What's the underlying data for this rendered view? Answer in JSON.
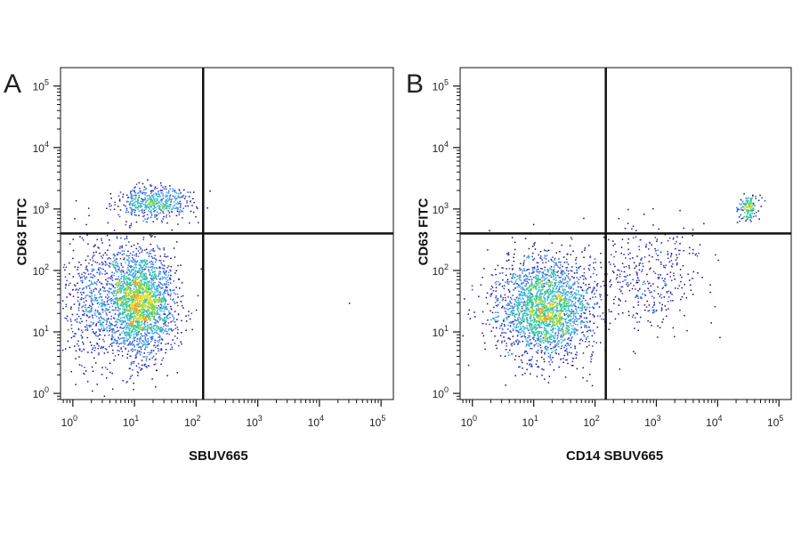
{
  "chart_data": [
    {
      "type": "scatter",
      "panel_label": "A",
      "xlabel": "SBUV665",
      "ylabel": "CD63 FITC",
      "xscale": "log",
      "yscale": "log",
      "xlim_log10": [
        -0.2,
        5.2
      ],
      "ylim_log10": [
        -0.1,
        5.3
      ],
      "x_ticks": [
        {
          "base": "10",
          "exp": "0",
          "log10": 0
        },
        {
          "base": "10",
          "exp": "1",
          "log10": 1
        },
        {
          "base": "10",
          "exp": "2",
          "log10": 2
        },
        {
          "base": "10",
          "exp": "3",
          "log10": 3
        },
        {
          "base": "10",
          "exp": "4",
          "log10": 4
        },
        {
          "base": "10",
          "exp": "5",
          "log10": 5
        }
      ],
      "y_ticks": [
        {
          "base": "10",
          "exp": "0",
          "log10": 0
        },
        {
          "base": "10",
          "exp": "1",
          "log10": 1
        },
        {
          "base": "10",
          "exp": "2",
          "log10": 2
        },
        {
          "base": "10",
          "exp": "3",
          "log10": 3
        },
        {
          "base": "10",
          "exp": "4",
          "log10": 4
        },
        {
          "base": "10",
          "exp": "5",
          "log10": 5
        }
      ],
      "quadrant_gate": {
        "x": 130,
        "y": 400
      },
      "populations": [
        {
          "x_center": 12,
          "y_center": 30,
          "x_spread_log10": 0.28,
          "y_spread_log10": 0.45,
          "events": 2400
        },
        {
          "x_center": 20,
          "y_center": 1300,
          "x_spread_log10": 0.3,
          "y_spread_log10": 0.14,
          "events": 520
        },
        {
          "x_center": 2,
          "y_center": 30,
          "x_spread_log10": 0.25,
          "y_spread_log10": 0.5,
          "events": 500
        }
      ],
      "outliers": [
        {
          "x": 30000,
          "y": 30
        }
      ]
    },
    {
      "type": "scatter",
      "panel_label": "B",
      "xlabel": "CD14 SBUV665",
      "ylabel": "CD63 FITC",
      "xscale": "log",
      "yscale": "log",
      "xlim_log10": [
        -0.2,
        5.2
      ],
      "ylim_log10": [
        -0.1,
        5.3
      ],
      "x_ticks": [
        {
          "base": "10",
          "exp": "0",
          "log10": 0
        },
        {
          "base": "10",
          "exp": "1",
          "log10": 1
        },
        {
          "base": "10",
          "exp": "2",
          "log10": 2
        },
        {
          "base": "10",
          "exp": "3",
          "log10": 3
        },
        {
          "base": "10",
          "exp": "4",
          "log10": 4
        },
        {
          "base": "10",
          "exp": "5",
          "log10": 5
        }
      ],
      "y_ticks": [
        {
          "base": "10",
          "exp": "0",
          "log10": 0
        },
        {
          "base": "10",
          "exp": "1",
          "log10": 1
        },
        {
          "base": "10",
          "exp": "2",
          "log10": 2
        },
        {
          "base": "10",
          "exp": "3",
          "log10": 3
        },
        {
          "base": "10",
          "exp": "4",
          "log10": 4
        },
        {
          "base": "10",
          "exp": "5",
          "log10": 5
        }
      ],
      "quadrant_gate": {
        "x": 150,
        "y": 400
      },
      "populations": [
        {
          "x_center": 15,
          "y_center": 25,
          "x_spread_log10": 0.4,
          "y_spread_log10": 0.42,
          "events": 2400
        },
        {
          "x_center": 800,
          "y_center": 80,
          "x_spread_log10": 0.45,
          "y_spread_log10": 0.45,
          "events": 380
        },
        {
          "x_center": 30000,
          "y_center": 1100,
          "x_spread_log10": 0.09,
          "y_spread_log10": 0.11,
          "events": 160
        }
      ],
      "outliers": []
    }
  ],
  "colors": {
    "axis": "#111111",
    "density_scale": [
      "#1a0a6e",
      "#2c3bc4",
      "#3f7fe0",
      "#37b8d6",
      "#2fc79a",
      "#8ad640",
      "#e4d92a",
      "#f3a128"
    ]
  }
}
